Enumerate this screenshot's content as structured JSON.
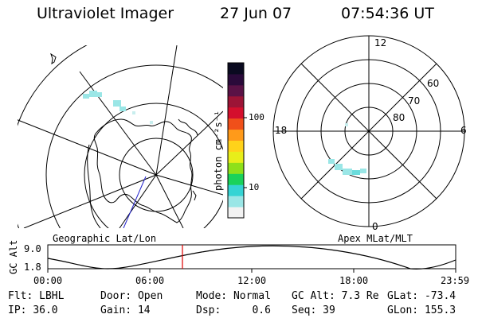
{
  "header": {
    "instrument": "Ultraviolet Imager",
    "date": "27 Jun 07",
    "time": "07:54:36 UT"
  },
  "colorbar": {
    "unit_label": "photon cm⁻²s⁻¹",
    "tick_labels": [
      "100",
      "10"
    ],
    "ticks": [
      100,
      10
    ],
    "scale": "log",
    "colors": [
      "#f2f2f2",
      "#9ae6e6",
      "#35d4d4",
      "#1ad25a",
      "#8ee01a",
      "#e8ee1a",
      "#ffd21a",
      "#ff9a1a",
      "#f0501a",
      "#d40f2d",
      "#9c1436",
      "#5a1246",
      "#2a0a3a",
      "#0a0a20"
    ]
  },
  "left_panel": {
    "caption": "Geographic Lat/Lon"
  },
  "right_panel": {
    "caption": "Apex MLat/MLT",
    "mlt_labels": [
      "12",
      "18",
      "6",
      "0"
    ],
    "mlat_labels": [
      "60",
      "70",
      "80"
    ]
  },
  "altitude_strip": {
    "axis_label": "GC Alt",
    "y_labels": [
      "9.0",
      "1.8"
    ],
    "x_labels": [
      "00:00",
      "06:00",
      "12:00",
      "18:00",
      "23:59"
    ],
    "current_time": "07:54:36"
  },
  "info": {
    "filter_label": "Flt:",
    "filter_value": "LBHL",
    "door_label": "Door:",
    "door_value": "Open",
    "mode_label": "Mode:",
    "mode_value": "Normal",
    "gcalt_label": "GC Alt:",
    "gcalt_value": "7.3 Re",
    "glat_label": "GLat:",
    "glat_value": "-73.4",
    "ip_label": "IP:",
    "ip_value": "36.0",
    "gain_label": "Gain:",
    "gain_value": "14",
    "dsp_label": "Dsp:",
    "dsp_value": "0.6",
    "seq_label": "Seq:",
    "seq_value": "39",
    "glon_label": "GLon:",
    "glon_value": "155.3"
  }
}
